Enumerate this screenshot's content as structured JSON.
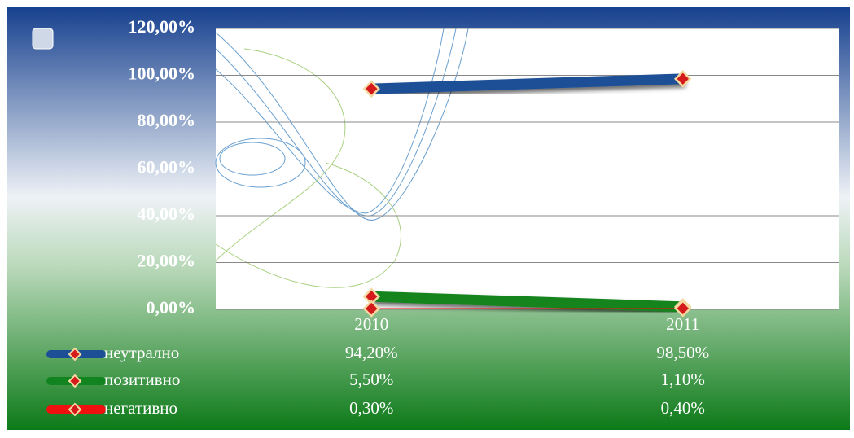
{
  "chart_data": {
    "type": "line",
    "categories": [
      "2010",
      "2011"
    ],
    "series": [
      {
        "name": "неутрално",
        "color": "#1d4f96",
        "values": [
          94.2,
          98.5
        ],
        "value_labels": [
          "94,20%",
          "98,50%"
        ]
      },
      {
        "name": "позитивно",
        "color": "#12841f",
        "values": [
          5.5,
          1.1
        ],
        "value_labels": [
          "5,50%",
          "1,10%"
        ]
      },
      {
        "name": "негативно",
        "color": "#f01010",
        "values": [
          0.3,
          0.4
        ],
        "value_labels": [
          "0,30%",
          "0,40%"
        ]
      }
    ],
    "ylim": [
      0,
      120
    ],
    "yticks": [
      {
        "value": 0,
        "label": "0,00%"
      },
      {
        "value": 20,
        "label": "20,00%"
      },
      {
        "value": 40,
        "label": "40,00%"
      },
      {
        "value": 60,
        "label": "60,00%"
      },
      {
        "value": 80,
        "label": "80,00%"
      },
      {
        "value": 100,
        "label": "100,00%"
      },
      {
        "value": 120,
        "label": "120,00%"
      }
    ],
    "grid": true
  }
}
